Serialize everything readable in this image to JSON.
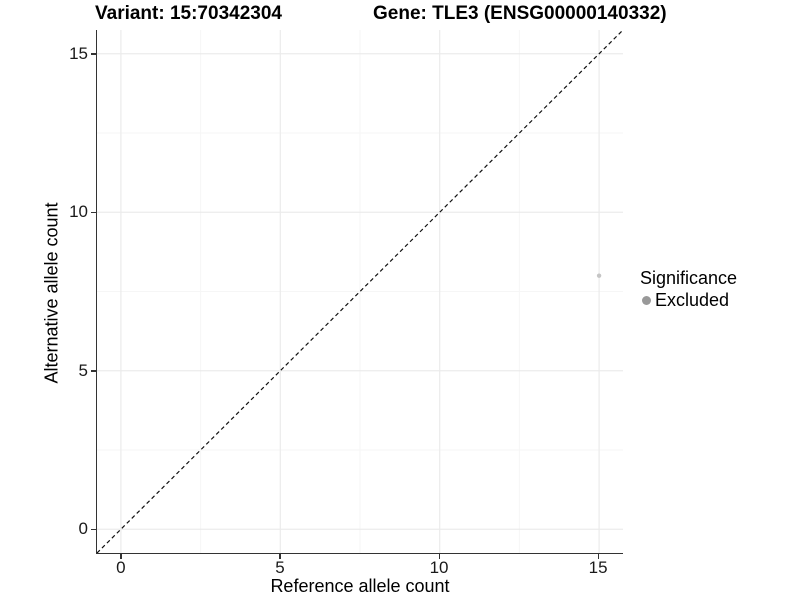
{
  "chart_data": {
    "type": "scatter",
    "titles": {
      "left": "Variant: 15:70342304",
      "right": "Gene: TLE3 (ENSG00000140332)"
    },
    "xlabel": "Reference allele count",
    "ylabel": "Alternative allele count",
    "xlim": [
      -0.75,
      15.75
    ],
    "ylim": [
      -0.75,
      15.75
    ],
    "x_ticks": [
      0,
      5,
      10,
      15
    ],
    "y_ticks": [
      0,
      5,
      10,
      15
    ],
    "grid": {
      "major": true,
      "minor": true
    },
    "identity_line": {
      "style": "dashed",
      "from": -0.75,
      "to": 15.75
    },
    "series": [
      {
        "name": "Excluded",
        "color": "#c5c5c5",
        "point_radius": 2.2,
        "points": [
          {
            "x": 15,
            "y": 8
          }
        ]
      }
    ],
    "legend": {
      "title": "Significance",
      "position": "right",
      "items": [
        {
          "label": "Excluded",
          "color": "#999999"
        }
      ]
    },
    "colors": {
      "background": "#ffffff",
      "grid_major": "#ebebeb",
      "grid_minor": "#f6f6f6",
      "axis_line": "#333333",
      "tick_label": "#1a1a1a",
      "identity_line": "#111111"
    }
  }
}
